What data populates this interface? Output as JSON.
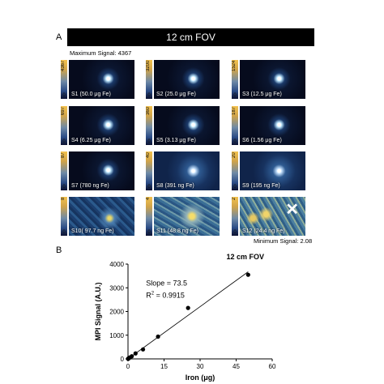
{
  "panel_a": {
    "letter": "A",
    "fov_title": "12 cm FOV",
    "max_signal": "Maximum Signal: 4367",
    "min_signal": "Minimum Signal: 2.08",
    "tiles": [
      {
        "label": "S1 (50.0 μg Fe)",
        "max": "4367",
        "min": "0",
        "style": "dark",
        "excluded": false
      },
      {
        "label": "S2 (25.0 μg Fe)",
        "max": "3200",
        "min": "0",
        "style": "dark",
        "excluded": false
      },
      {
        "label": "S3 (12.5 μg Fe)",
        "max": "1524",
        "min": "0",
        "style": "dark",
        "excluded": false
      },
      {
        "label": "S4 (6.25 μg Fe)",
        "max": "697",
        "min": "0",
        "style": "dark",
        "excluded": false
      },
      {
        "label": "S5 (3.13 μg Fe)",
        "max": "360",
        "min": "0",
        "style": "dark",
        "excluded": false
      },
      {
        "label": "S6 (1.56 μg Fe)",
        "max": "187",
        "min": "0",
        "style": "dark",
        "excluded": false
      },
      {
        "label": "S7 (780 ng Fe)",
        "max": "87",
        "min": "0",
        "style": "dark",
        "excluded": false
      },
      {
        "label": "S8 (391 ng Fe)",
        "max": "40",
        "min": "0",
        "style": "medium",
        "excluded": false
      },
      {
        "label": "S9 (195 ng Fe)",
        "max": "20",
        "min": "0",
        "style": "medium",
        "excluded": false
      },
      {
        "label": "S10( 97.7 ng Fe)",
        "max": "8",
        "min": "0",
        "style": "noisy",
        "excluded": false
      },
      {
        "label": "S11 (48.8 ng Fe)",
        "max": "4",
        "min": "0",
        "style": "noisier",
        "excluded": false
      },
      {
        "label": "S12 (24.4 ng Fe)",
        "max": "2",
        "min": "0",
        "style": "noisiest",
        "excluded": true
      }
    ],
    "exclude_mark": "✕"
  },
  "panel_b": {
    "letter": "B",
    "chart_data": {
      "type": "scatter",
      "title": "12 cm FOV",
      "xlabel": "Iron (μg)",
      "ylabel": "MPI Signal (A.U.)",
      "xlim": [
        0,
        60
      ],
      "ylim": [
        0,
        4000
      ],
      "xticks": [
        0,
        15,
        30,
        45,
        60
      ],
      "yticks": [
        0,
        1000,
        2000,
        3000,
        4000
      ],
      "points": [
        {
          "x": 50.0,
          "y": 3550
        },
        {
          "x": 25.0,
          "y": 2150
        },
        {
          "x": 12.5,
          "y": 940
        },
        {
          "x": 6.25,
          "y": 400
        },
        {
          "x": 3.13,
          "y": 230
        },
        {
          "x": 1.56,
          "y": 110
        },
        {
          "x": 0.78,
          "y": 60
        },
        {
          "x": 0.39,
          "y": 30
        },
        {
          "x": 0.195,
          "y": 15
        },
        {
          "x": 0.0977,
          "y": 8
        },
        {
          "x": 0.0488,
          "y": 4
        }
      ],
      "fit_line": {
        "x": [
          0,
          50
        ],
        "y": [
          0,
          3675
        ]
      },
      "annotations": {
        "slope": "Slope = 73.5",
        "r2_prefix": "R",
        "r2_sup": "2",
        "r2_value": " = 0.9915"
      }
    }
  }
}
